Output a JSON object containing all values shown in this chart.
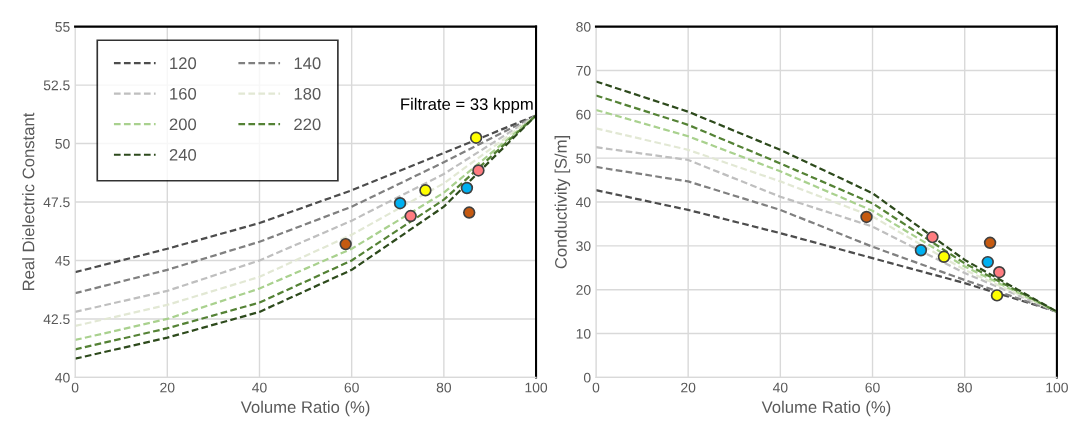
{
  "chart_data": [
    {
      "type": "line",
      "xlabel": "Volume Ratio (%)",
      "ylabel": "Real Dielectric Constant",
      "annotations": [
        "Filtrate = 33 kppm"
      ],
      "xlim": [
        0,
        100
      ],
      "ylim": [
        40,
        55
      ],
      "xticks": [
        0,
        20,
        40,
        60,
        80,
        100
      ],
      "yticks": [
        40,
        42.5,
        45,
        47.5,
        50,
        52.5,
        55
      ],
      "grid": true,
      "legend": "top left",
      "line_style": "dashed",
      "marker": "none",
      "series": [
        {
          "name": "120",
          "color": "#4d4d4d",
          "x": [
            0,
            20,
            40,
            60,
            80,
            90,
            100
          ],
          "values": [
            44.5,
            45.5,
            46.6,
            48.0,
            49.6,
            50.4,
            51.2
          ]
        },
        {
          "name": "140",
          "color": "#808080",
          "x": [
            0,
            20,
            40,
            60,
            80,
            100
          ],
          "values": [
            43.6,
            44.6,
            45.8,
            47.3,
            49.2,
            51.2
          ]
        },
        {
          "name": "160",
          "color": "#bfbfbf",
          "x": [
            0,
            20,
            40,
            60,
            80,
            100
          ],
          "values": [
            42.8,
            43.7,
            45.0,
            46.7,
            48.7,
            51.2
          ]
        },
        {
          "name": "180",
          "color": "#e2e8d4",
          "x": [
            0,
            20,
            40,
            60,
            80,
            100
          ],
          "values": [
            42.2,
            43.1,
            44.3,
            46.1,
            48.3,
            51.2
          ]
        },
        {
          "name": "200",
          "color": "#a9d18e",
          "x": [
            0,
            20,
            40,
            60,
            80,
            100
          ],
          "values": [
            41.6,
            42.5,
            43.8,
            45.5,
            47.9,
            51.2
          ]
        },
        {
          "name": "220",
          "color": "#548235",
          "x": [
            0,
            20,
            40,
            60,
            80,
            100
          ],
          "values": [
            41.2,
            42.1,
            43.2,
            45.0,
            47.6,
            51.2
          ]
        },
        {
          "name": "240",
          "color": "#2d4a1c",
          "x": [
            0,
            20,
            40,
            60,
            80,
            100
          ],
          "values": [
            40.8,
            41.7,
            42.8,
            44.6,
            47.3,
            51.2
          ]
        },
        {
          "type": "scatter",
          "marker": "circle",
          "color": "#ffff00",
          "x": [
            87,
            76
          ],
          "values": [
            50.25,
            48.0
          ]
        },
        {
          "type": "scatter",
          "marker": "circle",
          "color": "#00b0f0",
          "x": [
            70.5,
            85
          ],
          "values": [
            47.45,
            48.1
          ]
        },
        {
          "type": "scatter",
          "marker": "circle",
          "color": "#c55a11",
          "x": [
            58.7,
            85.5
          ],
          "values": [
            45.7,
            47.05
          ]
        },
        {
          "type": "scatter",
          "marker": "circle",
          "color": "#ff7c80",
          "x": [
            72.8,
            87.5
          ],
          "values": [
            46.9,
            48.85
          ]
        }
      ]
    },
    {
      "type": "line",
      "xlabel": "Volume Ratio (%)",
      "ylabel": "Conductivity [S/m]",
      "xlim": [
        0,
        100
      ],
      "ylim": [
        0,
        80
      ],
      "xticks": [
        0,
        20,
        40,
        60,
        80,
        100
      ],
      "yticks": [
        0,
        10,
        20,
        30,
        40,
        50,
        60,
        70,
        80
      ],
      "grid": true,
      "line_style": "dashed",
      "marker": "none",
      "series": [
        {
          "color": "#4d4d4d",
          "x": [
            0,
            20,
            40,
            60,
            80,
            100
          ],
          "values": [
            42.7,
            38.2,
            32.9,
            27.2,
            21.5,
            15
          ]
        },
        {
          "color": "#808080",
          "x": [
            0,
            20,
            40,
            60,
            80,
            100
          ],
          "values": [
            48,
            44.7,
            38.2,
            29.8,
            22.2,
            15
          ]
        },
        {
          "color": "#bfbfbf",
          "x": [
            0,
            20,
            40,
            60,
            80,
            100
          ],
          "values": [
            52.5,
            49.6,
            41.2,
            34.4,
            23.8,
            15
          ]
        },
        {
          "color": "#e2e8d4",
          "x": [
            0,
            20,
            40,
            60,
            80,
            100
          ],
          "values": [
            56.8,
            51.9,
            44.7,
            36.7,
            24.5,
            15
          ]
        },
        {
          "color": "#a9d18e",
          "x": [
            0,
            20,
            40,
            60,
            80,
            100
          ],
          "values": [
            61,
            55,
            47,
            38,
            25.3,
            15
          ]
        },
        {
          "color": "#548235",
          "x": [
            0,
            20,
            40,
            60,
            80,
            100
          ],
          "values": [
            64.3,
            57.6,
            48.8,
            39.7,
            26,
            15
          ]
        },
        {
          "color": "#2d4a1c",
          "x": [
            0,
            20,
            40,
            60,
            80,
            100
          ],
          "values": [
            67.5,
            60.6,
            51.9,
            42,
            26.8,
            15
          ]
        },
        {
          "type": "scatter",
          "marker": "circle",
          "color": "#ffff00",
          "x": [
            87,
            75.5
          ],
          "values": [
            18.7,
            27.5
          ]
        },
        {
          "type": "scatter",
          "marker": "circle",
          "color": "#00b0f0",
          "x": [
            70.5,
            85
          ],
          "values": [
            29,
            26.3
          ]
        },
        {
          "type": "scatter",
          "marker": "circle",
          "color": "#c55a11",
          "x": [
            58.7,
            85.5
          ],
          "values": [
            36.6,
            30.7
          ]
        },
        {
          "type": "scatter",
          "marker": "circle",
          "color": "#ff7c80",
          "x": [
            73,
            87.5
          ],
          "values": [
            32,
            24
          ]
        }
      ]
    }
  ]
}
